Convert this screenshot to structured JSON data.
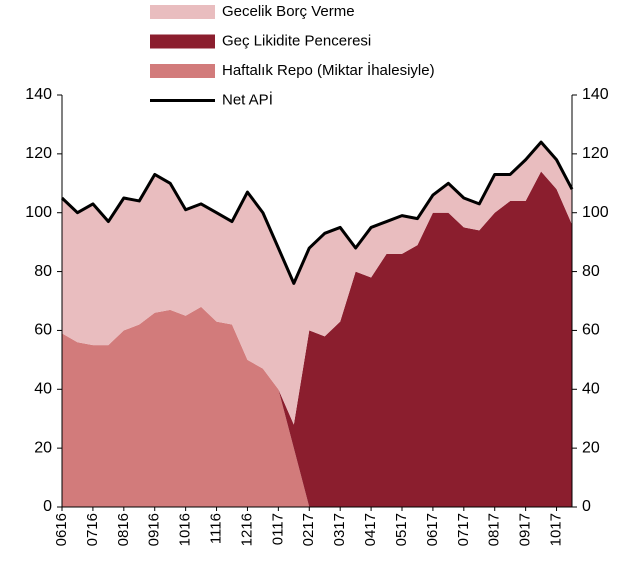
{
  "chart_data": {
    "type": "area",
    "stacked": true,
    "categories": [
      "0616",
      null,
      "0716",
      null,
      "0816",
      null,
      "0916",
      null,
      "1016",
      null,
      "1116",
      null,
      "1216",
      null,
      "0117",
      null,
      "0217",
      null,
      "0317",
      null,
      "0417",
      null,
      "0517",
      null,
      "0617",
      null,
      "0717",
      null,
      "0817",
      null,
      "0917",
      null,
      "1017",
      null
    ],
    "series": [
      {
        "name": "Gecelik Borç Verme",
        "color": "#e9bdbf",
        "values": [
          46,
          44,
          48,
          42,
          45,
          42,
          47,
          43,
          36,
          35,
          37,
          35,
          57,
          53,
          48,
          48,
          28,
          35,
          32,
          8,
          17,
          11,
          13,
          9,
          6,
          10,
          10,
          9,
          13,
          9,
          14,
          10,
          10,
          12
        ]
      },
      {
        "name": "Geç Likidite Penceresi",
        "color": "#8b1e2e",
        "values": [
          0,
          0,
          0,
          0,
          0,
          0,
          0,
          0,
          0,
          0,
          0,
          0,
          0,
          0,
          0,
          8,
          60,
          58,
          63,
          80,
          78,
          86,
          86,
          89,
          100,
          100,
          95,
          94,
          100,
          104,
          104,
          114,
          108,
          96
        ]
      },
      {
        "name": "Haftalık Repo (Miktar İhalesiyle)",
        "color": "#d27b7b",
        "values": [
          59,
          56,
          55,
          55,
          60,
          62,
          66,
          67,
          65,
          68,
          63,
          62,
          50,
          47,
          40,
          20,
          0,
          0,
          0,
          0,
          0,
          0,
          0,
          0,
          0,
          0,
          0,
          0,
          0,
          0,
          0,
          0,
          0,
          0
        ]
      },
      {
        "name": "Net APİ",
        "color": "#000000",
        "type": "line",
        "values": [
          105,
          100,
          103,
          97,
          105,
          104,
          113,
          110,
          101,
          103,
          100,
          97,
          107,
          100,
          88,
          76,
          88,
          93,
          95,
          88,
          95,
          97,
          99,
          98,
          106,
          110,
          105,
          103,
          113,
          113,
          118,
          124,
          118,
          108
        ]
      }
    ],
    "ylim": [
      0,
      140
    ],
    "yticks": [
      0,
      20,
      40,
      60,
      80,
      100,
      120,
      140
    ],
    "y2lim": [
      0,
      140
    ],
    "y2ticks": [
      0,
      20,
      40,
      60,
      80,
      100,
      120,
      140
    ]
  }
}
